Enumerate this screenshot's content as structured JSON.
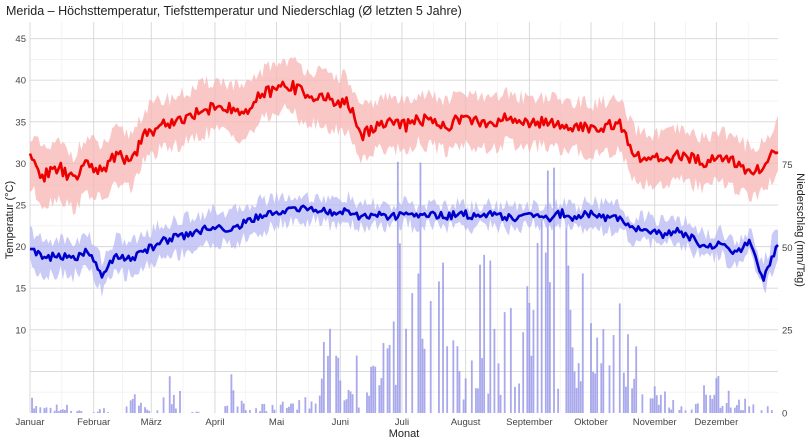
{
  "chart_data": {
    "type": "line",
    "title": "Merida – Höchsttemperatur, Tiefsttemperatur und Niederschlag (Ø letzten 5 Jahre)",
    "xlabel": "Monat",
    "ylabel": "Temperatur (°C)",
    "y2label": "Niederschlag (mm/Tag)",
    "x_tick_labels": [
      "Januar",
      "Februar",
      "März",
      "April",
      "Mai",
      "Juni",
      "Juli",
      "August",
      "September",
      "Oktober",
      "November",
      "Dezember"
    ],
    "y_ticks": [
      10,
      15,
      20,
      25,
      30,
      35,
      40,
      45
    ],
    "y2_ticks": [
      0,
      25,
      50,
      75
    ],
    "ylim": [
      0,
      47
    ],
    "y2lim": [
      0,
      118
    ],
    "grid": true,
    "colors": {
      "max_line": "#ee0000",
      "max_band": "#f8b4b4",
      "min_line": "#0000cc",
      "min_band": "#b8b8f4",
      "precip": "#8c8ce6"
    },
    "day_of_year": [
      1,
      8,
      15,
      22,
      29,
      36,
      43,
      50,
      57,
      64,
      71,
      78,
      85,
      92,
      99,
      106,
      113,
      120,
      127,
      134,
      141,
      148,
      155,
      162,
      169,
      176,
      183,
      190,
      197,
      204,
      211,
      218,
      225,
      232,
      239,
      246,
      253,
      260,
      267,
      274,
      281,
      288,
      295,
      302,
      309,
      316,
      323,
      330,
      337,
      344,
      351,
      358,
      365
    ],
    "series": [
      {
        "values": [
          30.5,
          28.5,
          29.5,
          28.0,
          30.0,
          29.0,
          31.0,
          30.5,
          33.5,
          34.5,
          35.0,
          35.5,
          36.5,
          37.0,
          36.5,
          36.0,
          38.0,
          39.0,
          39.5,
          38.5,
          38.0,
          37.5,
          37.5,
          33.5,
          34.5,
          35.0,
          34.5,
          35.5,
          35.0,
          34.5,
          35.5,
          35.0,
          34.5,
          35.5,
          35.0,
          35.0,
          35.0,
          34.5,
          34.5,
          34.0,
          34.5,
          34.5,
          31.0,
          30.5,
          30.5,
          31.0,
          30.5,
          30.0,
          31.0,
          30.0,
          29.0,
          29.5,
          32.0
        ],
        "band_high": [
          33.5,
          31.5,
          32.5,
          31.0,
          33.0,
          32.0,
          34.0,
          33.5,
          36.5,
          37.5,
          38.0,
          38.5,
          39.5,
          40.0,
          39.5,
          39.0,
          41.0,
          42.0,
          42.5,
          41.5,
          41.0,
          40.5,
          40.5,
          36.5,
          37.5,
          38.0,
          37.5,
          38.5,
          38.0,
          37.5,
          38.5,
          38.0,
          37.5,
          38.5,
          38.0,
          38.0,
          38.0,
          37.5,
          37.5,
          37.0,
          37.5,
          37.5,
          34.0,
          33.5,
          33.5,
          34.0,
          33.5,
          33.0,
          34.0,
          33.0,
          32.0,
          32.5,
          35.0
        ],
        "band_low": [
          27.0,
          25.0,
          26.0,
          24.5,
          26.5,
          25.5,
          27.5,
          27.0,
          30.5,
          31.5,
          32.0,
          32.5,
          33.5,
          34.0,
          33.5,
          33.0,
          35.0,
          36.0,
          36.5,
          35.0,
          34.5,
          34.0,
          34.0,
          30.5,
          31.5,
          32.0,
          31.5,
          32.5,
          32.0,
          31.5,
          32.5,
          32.0,
          31.5,
          32.5,
          32.0,
          32.0,
          32.0,
          31.5,
          31.5,
          31.0,
          31.5,
          31.5,
          28.0,
          27.5,
          27.5,
          28.0,
          27.5,
          27.0,
          28.0,
          27.0,
          26.0,
          26.5,
          29.0
        ]
      },
      {
        "values": [
          20.0,
          18.5,
          19.0,
          18.5,
          19.5,
          16.5,
          19.0,
          18.5,
          19.5,
          20.5,
          21.0,
          21.5,
          22.0,
          22.5,
          22.0,
          23.0,
          23.5,
          24.0,
          24.5,
          24.5,
          24.5,
          24.0,
          24.5,
          23.5,
          24.0,
          23.5,
          24.0,
          23.5,
          24.0,
          23.5,
          24.0,
          23.5,
          24.0,
          23.5,
          23.5,
          24.0,
          23.5,
          24.0,
          23.5,
          24.0,
          23.5,
          23.5,
          22.0,
          22.0,
          21.5,
          22.0,
          21.0,
          20.0,
          20.5,
          19.0,
          20.5,
          16.0,
          20.5
        ],
        "band_high": [
          22.0,
          20.5,
          21.0,
          20.5,
          21.5,
          18.5,
          21.0,
          20.5,
          21.5,
          22.5,
          23.0,
          23.5,
          24.0,
          24.5,
          24.0,
          25.0,
          25.5,
          26.0,
          26.0,
          26.0,
          26.0,
          25.5,
          26.0,
          24.8,
          25.2,
          24.8,
          25.2,
          24.8,
          25.2,
          24.8,
          25.2,
          24.8,
          25.2,
          24.8,
          24.8,
          25.2,
          24.8,
          25.2,
          24.8,
          25.5,
          25.0,
          25.0,
          23.5,
          23.5,
          23.0,
          23.5,
          22.5,
          21.5,
          22.0,
          20.5,
          22.0,
          18.0,
          22.5
        ],
        "band_low": [
          18.0,
          16.5,
          17.0,
          16.5,
          17.5,
          14.5,
          17.0,
          16.5,
          17.5,
          18.5,
          19.0,
          19.5,
          20.0,
          20.5,
          20.0,
          21.0,
          21.5,
          22.5,
          23.0,
          23.0,
          23.0,
          22.5,
          23.0,
          22.2,
          22.8,
          22.2,
          22.8,
          22.2,
          22.8,
          22.2,
          22.8,
          22.2,
          22.8,
          22.2,
          22.2,
          22.8,
          22.2,
          22.8,
          22.2,
          22.5,
          22.0,
          22.0,
          20.5,
          20.5,
          20.0,
          20.5,
          19.5,
          18.5,
          19.0,
          17.5,
          19.0,
          14.5,
          18.5
        ]
      },
      {
        "values": [
          3,
          1,
          1,
          1,
          0,
          1,
          0,
          4,
          1,
          1,
          5,
          1,
          0,
          0,
          7,
          1,
          1,
          1,
          2,
          4,
          2,
          22,
          5,
          7,
          9,
          18,
          48,
          37,
          25,
          20,
          14,
          12,
          25,
          14,
          20,
          30,
          34,
          29,
          20,
          14,
          18,
          16,
          11,
          5,
          3,
          2,
          1,
          4,
          5,
          3,
          2,
          1,
          2
        ]
      }
    ]
  }
}
